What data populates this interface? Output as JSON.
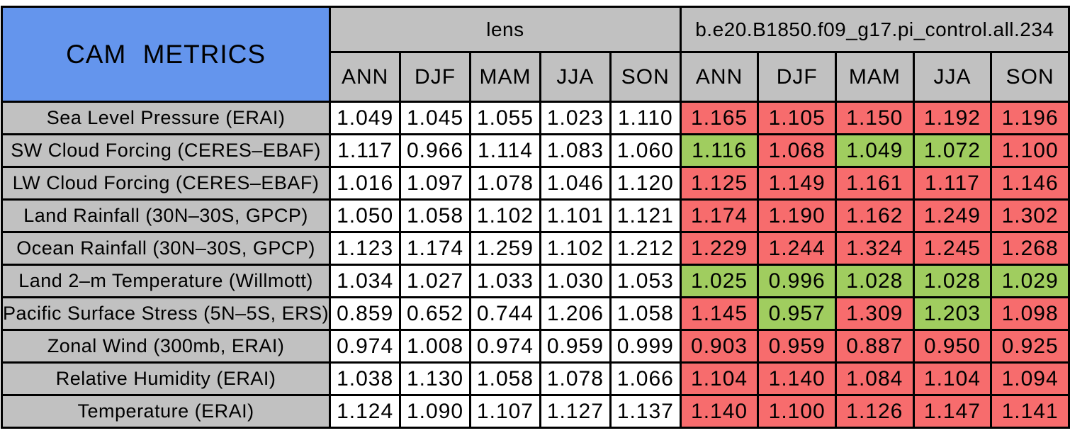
{
  "title": "CAM METRICS",
  "colors": {
    "title_bg": "#6495ED",
    "header_bg": "#C1C1C1",
    "value_bg": "#FFFFFF",
    "better_bg": "#A0CD5F",
    "worse_bg": "#F76C6D",
    "border": "#000000",
    "text": "#000000"
  },
  "chart_data": {
    "type": "table",
    "title": "CAM METRICS",
    "column_groups": [
      {
        "label": "lens",
        "seasons": [
          "ANN",
          "DJF",
          "MAM",
          "JJA",
          "SON"
        ]
      },
      {
        "label": "b.e20.B1850.f09_g17.pi_control.all.234",
        "seasons": [
          "ANN",
          "DJF",
          "MAM",
          "JJA",
          "SON"
        ]
      }
    ],
    "cell_color_meaning": {
      "better": "#A0CD5F",
      "worse": "#F76C6D",
      "reference": "#FFFFFF"
    },
    "rows": [
      {
        "label": "Sea Level Pressure (ERAI)",
        "lens": [
          "1.049",
          "1.045",
          "1.055",
          "1.023",
          "1.110"
        ],
        "control": [
          "1.165",
          "1.105",
          "1.150",
          "1.192",
          "1.196"
        ],
        "control_flags": [
          "worse",
          "worse",
          "worse",
          "worse",
          "worse"
        ]
      },
      {
        "label": "SW Cloud Forcing (CERES–EBAF)",
        "lens": [
          "1.117",
          "0.966",
          "1.114",
          "1.083",
          "1.060"
        ],
        "control": [
          "1.116",
          "1.068",
          "1.049",
          "1.072",
          "1.100"
        ],
        "control_flags": [
          "better",
          "worse",
          "better",
          "better",
          "worse"
        ]
      },
      {
        "label": "LW Cloud Forcing (CERES–EBAF)",
        "lens": [
          "1.016",
          "1.097",
          "1.078",
          "1.046",
          "1.120"
        ],
        "control": [
          "1.125",
          "1.149",
          "1.161",
          "1.117",
          "1.146"
        ],
        "control_flags": [
          "worse",
          "worse",
          "worse",
          "worse",
          "worse"
        ]
      },
      {
        "label": "Land Rainfall (30N–30S, GPCP)",
        "lens": [
          "1.050",
          "1.058",
          "1.102",
          "1.101",
          "1.121"
        ],
        "control": [
          "1.174",
          "1.190",
          "1.162",
          "1.249",
          "1.302"
        ],
        "control_flags": [
          "worse",
          "worse",
          "worse",
          "worse",
          "worse"
        ]
      },
      {
        "label": "Ocean Rainfall (30N–30S, GPCP)",
        "lens": [
          "1.123",
          "1.174",
          "1.259",
          "1.102",
          "1.212"
        ],
        "control": [
          "1.229",
          "1.244",
          "1.324",
          "1.245",
          "1.268"
        ],
        "control_flags": [
          "worse",
          "worse",
          "worse",
          "worse",
          "worse"
        ]
      },
      {
        "label": "Land 2–m Temperature (Willmott)",
        "lens": [
          "1.034",
          "1.027",
          "1.033",
          "1.030",
          "1.053"
        ],
        "control": [
          "1.025",
          "0.996",
          "1.028",
          "1.028",
          "1.029"
        ],
        "control_flags": [
          "better",
          "better",
          "better",
          "better",
          "better"
        ]
      },
      {
        "label": "Pacific Surface Stress (5N–5S, ERS)",
        "lens": [
          "0.859",
          "0.652",
          "0.744",
          "1.206",
          "1.058"
        ],
        "control": [
          "1.145",
          "0.957",
          "1.309",
          "1.203",
          "1.098"
        ],
        "control_flags": [
          "worse",
          "better",
          "worse",
          "better",
          "worse"
        ]
      },
      {
        "label": "Zonal Wind (300mb, ERAI)",
        "lens": [
          "0.974",
          "1.008",
          "0.974",
          "0.959",
          "0.999"
        ],
        "control": [
          "0.903",
          "0.959",
          "0.887",
          "0.950",
          "0.925"
        ],
        "control_flags": [
          "worse",
          "worse",
          "worse",
          "worse",
          "worse"
        ]
      },
      {
        "label": "Relative Humidity (ERAI)",
        "lens": [
          "1.038",
          "1.130",
          "1.058",
          "1.078",
          "1.066"
        ],
        "control": [
          "1.104",
          "1.140",
          "1.084",
          "1.104",
          "1.094"
        ],
        "control_flags": [
          "worse",
          "worse",
          "worse",
          "worse",
          "worse"
        ]
      },
      {
        "label": "Temperature (ERAI)",
        "lens": [
          "1.124",
          "1.090",
          "1.107",
          "1.127",
          "1.137"
        ],
        "control": [
          "1.140",
          "1.100",
          "1.126",
          "1.147",
          "1.141"
        ],
        "control_flags": [
          "worse",
          "worse",
          "worse",
          "worse",
          "worse"
        ]
      }
    ]
  }
}
